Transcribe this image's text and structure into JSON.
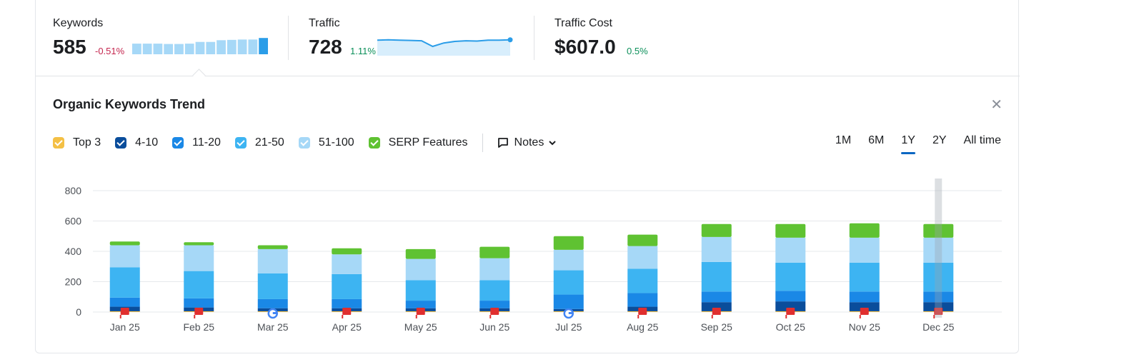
{
  "metrics": {
    "keywords": {
      "label": "Keywords",
      "value": "585",
      "delta": "-0.51%",
      "spark": [
        0.62,
        0.62,
        0.62,
        0.6,
        0.6,
        0.62,
        0.72,
        0.72,
        0.82,
        0.84,
        0.86,
        0.86,
        0.95
      ]
    },
    "traffic": {
      "label": "Traffic",
      "value": "728",
      "delta": "1.11%",
      "spark": [
        0.9,
        0.92,
        0.9,
        0.88,
        0.86,
        0.5,
        0.72,
        0.82,
        0.86,
        0.84,
        0.9,
        0.9,
        0.92
      ]
    },
    "traffic_cost": {
      "label": "Traffic Cost",
      "value": "$607.0",
      "delta": "0.5%"
    }
  },
  "panel": {
    "title": "Organic Keywords Trend"
  },
  "legend": [
    {
      "label": "Top 3",
      "color": "#f4c045"
    },
    {
      "label": "4-10",
      "color": "#0a4d9b"
    },
    {
      "label": "11-20",
      "color": "#1a88e6"
    },
    {
      "label": "21-50",
      "color": "#3db4f2"
    },
    {
      "label": "51-100",
      "color": "#a6d8f7"
    },
    {
      "label": "SERP Features",
      "color": "#5fc232"
    }
  ],
  "notes_label": "Notes",
  "ranges": [
    {
      "label": "1M"
    },
    {
      "label": "6M"
    },
    {
      "label": "1Y",
      "active": true
    },
    {
      "label": "2Y"
    },
    {
      "label": "All time"
    }
  ],
  "chart_data": {
    "type": "bar",
    "stacked": true,
    "categories": [
      "Jan 25",
      "Feb 25",
      "Mar 25",
      "Apr 25",
      "May 25",
      "Jun 25",
      "Jul 25",
      "Aug 25",
      "Sep 25",
      "Oct 25",
      "Nov 25",
      "Dec 25"
    ],
    "ylim": [
      0,
      800
    ],
    "yticks": [
      0,
      200,
      400,
      600,
      800
    ],
    "grid": true,
    "series": [
      {
        "name": "Top 3",
        "values": [
          5,
          5,
          5,
          5,
          5,
          5,
          5,
          5,
          5,
          5,
          5,
          5
        ]
      },
      {
        "name": "4-10",
        "values": [
          30,
          25,
          20,
          20,
          20,
          20,
          15,
          30,
          60,
          65,
          60,
          60
        ]
      },
      {
        "name": "11-20",
        "values": [
          60,
          60,
          60,
          60,
          50,
          50,
          95,
          90,
          70,
          70,
          70,
          70
        ]
      },
      {
        "name": "21-50",
        "values": [
          200,
          180,
          170,
          165,
          135,
          135,
          160,
          160,
          195,
          185,
          190,
          190
        ]
      },
      {
        "name": "51-100",
        "values": [
          145,
          170,
          160,
          130,
          140,
          145,
          135,
          150,
          165,
          165,
          165,
          165
        ]
      },
      {
        "name": "SERP Features",
        "values": [
          25,
          20,
          25,
          40,
          65,
          75,
          90,
          75,
          85,
          90,
          95,
          90
        ]
      }
    ],
    "note_markers": [
      "flag",
      "flag",
      "google",
      "flag",
      "flag",
      "flag",
      "google",
      "flag",
      "flag",
      "flag",
      "flag",
      "flag"
    ]
  }
}
